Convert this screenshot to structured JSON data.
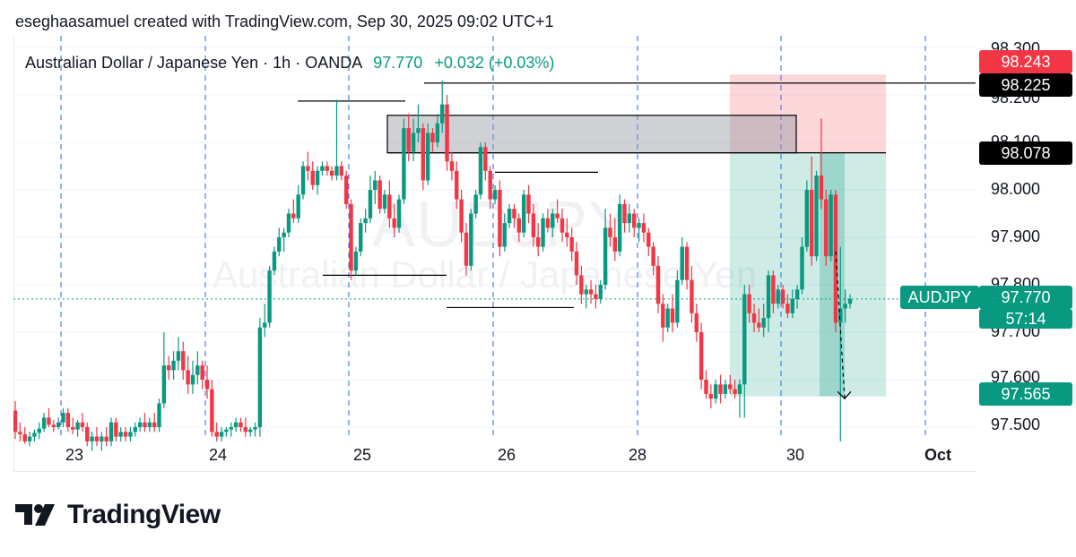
{
  "header": {
    "attribution": "eseghaasamuel created with TradingView.com, Sep 30, 2025 09:02 UTC+1"
  },
  "legend": {
    "symbol_desc": "Australian Dollar / Japanese Yen · 1h · OANDA",
    "price": "97.770",
    "change": "+0.032 (+0.03%)"
  },
  "watermark": {
    "ticker": "AUDJPY",
    "name": "Australian Dollar / Japanese Yen"
  },
  "price_axis": {
    "ticks": [
      "98.300",
      "98.200",
      "98.100",
      "98.000",
      "97.900",
      "97.800",
      "97.700",
      "97.600",
      "97.500"
    ]
  },
  "time_axis": {
    "ticks": [
      "23",
      "24",
      "25",
      "26",
      "28",
      "30",
      "Oct"
    ]
  },
  "labels": {
    "stop_loss": "98.243",
    "resistance": "98.225",
    "entry": "98.078",
    "ticker": "AUDJPY",
    "last_price": "97.770",
    "countdown": "57:14",
    "take_profit": "97.565"
  },
  "colors": {
    "up": "#089981",
    "down": "#f23645",
    "grid_marker": "#2962ff",
    "stop_zone": "#f23645",
    "target_zone": "#089981"
  },
  "brand": {
    "name": "TradingView"
  },
  "chart_data": {
    "type": "candlestick",
    "title": "Australian Dollar / Japanese Yen · 1h · OANDA",
    "ylim": [
      97.48,
      98.325
    ],
    "x_ticks": [
      "23",
      "24",
      "25",
      "26",
      "28",
      "30",
      "Oct"
    ],
    "levels": {
      "stop_loss": 98.243,
      "resistance": 98.225,
      "entry": 98.078,
      "last": 97.77,
      "take_profit": 97.565
    },
    "candles": [
      [
        97.535,
        97.555,
        97.475,
        97.49
      ],
      [
        97.49,
        97.51,
        97.47,
        97.485
      ],
      [
        97.485,
        97.5,
        97.465,
        97.47
      ],
      [
        97.47,
        97.49,
        97.46,
        97.48
      ],
      [
        97.48,
        97.495,
        97.47,
        97.488
      ],
      [
        97.488,
        97.51,
        97.475,
        97.497
      ],
      [
        97.497,
        97.53,
        97.49,
        97.52
      ],
      [
        97.52,
        97.54,
        97.5,
        97.505
      ],
      [
        97.505,
        97.515,
        97.49,
        97.5
      ],
      [
        97.5,
        97.52,
        97.495,
        97.51
      ],
      [
        97.51,
        97.54,
        97.5,
        97.53
      ],
      [
        97.53,
        97.54,
        97.49,
        97.5
      ],
      [
        97.5,
        97.52,
        97.485,
        97.495
      ],
      [
        97.495,
        97.515,
        97.48,
        97.51
      ],
      [
        97.51,
        97.53,
        97.49,
        97.5
      ],
      [
        97.5,
        97.51,
        97.46,
        97.47
      ],
      [
        97.47,
        97.49,
        97.45,
        97.48
      ],
      [
        97.48,
        97.5,
        97.46,
        97.47
      ],
      [
        97.47,
        97.49,
        97.45,
        97.48
      ],
      [
        97.48,
        97.5,
        97.46,
        97.47
      ],
      [
        97.47,
        97.52,
        97.46,
        97.51
      ],
      [
        97.51,
        97.52,
        97.47,
        97.48
      ],
      [
        97.48,
        97.5,
        97.47,
        97.49
      ],
      [
        97.49,
        97.5,
        97.47,
        97.48
      ],
      [
        97.48,
        97.5,
        97.47,
        97.49
      ],
      [
        97.49,
        97.51,
        97.48,
        97.5
      ],
      [
        97.5,
        97.52,
        97.49,
        97.51
      ],
      [
        97.51,
        97.53,
        97.49,
        97.5
      ],
      [
        97.5,
        97.52,
        97.49,
        97.51
      ],
      [
        97.51,
        97.53,
        97.49,
        97.5
      ],
      [
        97.5,
        97.56,
        97.49,
        97.55
      ],
      [
        97.55,
        97.7,
        97.54,
        97.63
      ],
      [
        97.63,
        97.65,
        97.6,
        97.62
      ],
      [
        97.62,
        97.66,
        97.6,
        97.64
      ],
      [
        97.64,
        97.69,
        97.62,
        97.66
      ],
      [
        97.66,
        97.68,
        97.6,
        97.62
      ],
      [
        97.62,
        97.65,
        97.57,
        97.59
      ],
      [
        97.59,
        97.64,
        97.57,
        97.61
      ],
      [
        97.61,
        97.66,
        97.59,
        97.63
      ],
      [
        97.63,
        97.64,
        97.58,
        97.6
      ],
      [
        97.6,
        97.63,
        97.56,
        97.58
      ],
      [
        97.58,
        97.6,
        97.48,
        97.49
      ],
      [
        97.49,
        97.51,
        97.47,
        97.48
      ],
      [
        97.48,
        97.5,
        97.47,
        97.49
      ],
      [
        97.49,
        97.5,
        97.48,
        97.495
      ],
      [
        97.495,
        97.51,
        97.48,
        97.5
      ],
      [
        97.5,
        97.52,
        97.49,
        97.51
      ],
      [
        97.51,
        97.52,
        97.49,
        97.5
      ],
      [
        97.5,
        97.52,
        97.48,
        97.49
      ],
      [
        97.49,
        97.5,
        97.48,
        97.495
      ],
      [
        97.495,
        97.51,
        97.48,
        97.5
      ],
      [
        97.5,
        97.73,
        97.48,
        97.71
      ],
      [
        97.71,
        97.76,
        97.69,
        97.72
      ],
      [
        97.72,
        97.84,
        97.71,
        97.83
      ],
      [
        97.83,
        97.88,
        97.82,
        97.87
      ],
      [
        97.87,
        97.92,
        97.86,
        97.9
      ],
      [
        97.9,
        97.92,
        97.87,
        97.91
      ],
      [
        97.91,
        97.96,
        97.9,
        97.95
      ],
      [
        97.95,
        97.98,
        97.93,
        97.94
      ],
      [
        97.94,
        98.01,
        97.93,
        97.99
      ],
      [
        97.99,
        98.06,
        97.98,
        98.05
      ],
      [
        98.05,
        98.08,
        98.02,
        98.04
      ],
      [
        98.04,
        98.06,
        98.0,
        98.01
      ],
      [
        98.01,
        98.05,
        97.99,
        98.04
      ],
      [
        98.04,
        98.06,
        98.03,
        98.05
      ],
      [
        98.05,
        98.06,
        98.03,
        98.04
      ],
      [
        98.04,
        98.05,
        98.02,
        98.03
      ],
      [
        98.03,
        98.19,
        98.02,
        98.05
      ],
      [
        98.05,
        98.06,
        98.02,
        98.03
      ],
      [
        98.03,
        98.04,
        97.96,
        97.97
      ],
      [
        97.97,
        97.98,
        97.81,
        97.83
      ],
      [
        97.83,
        97.88,
        97.82,
        97.87
      ],
      [
        97.87,
        97.94,
        97.86,
        97.93
      ],
      [
        97.93,
        97.96,
        97.91,
        97.94
      ],
      [
        97.94,
        98.03,
        97.93,
        98.0
      ],
      [
        98.0,
        98.04,
        97.97,
        98.02
      ],
      [
        98.02,
        98.03,
        97.95,
        97.96
      ],
      [
        97.96,
        98.0,
        97.95,
        97.99
      ],
      [
        97.99,
        98.02,
        97.92,
        97.94
      ],
      [
        97.94,
        97.97,
        97.9,
        97.92
      ],
      [
        97.92,
        97.99,
        97.91,
        97.98
      ],
      [
        97.98,
        98.15,
        97.97,
        98.13
      ],
      [
        98.13,
        98.16,
        98.06,
        98.08
      ],
      [
        98.08,
        98.15,
        98.06,
        98.12
      ],
      [
        98.12,
        98.18,
        98.1,
        98.13
      ],
      [
        98.13,
        98.14,
        98.0,
        98.02
      ],
      [
        98.02,
        98.14,
        98.01,
        98.12
      ],
      [
        98.12,
        98.13,
        98.08,
        98.1
      ],
      [
        98.1,
        98.16,
        98.09,
        98.14
      ],
      [
        98.14,
        98.23,
        98.12,
        98.18
      ],
      [
        98.18,
        98.2,
        98.04,
        98.06
      ],
      [
        98.06,
        98.08,
        98.02,
        98.04
      ],
      [
        98.04,
        98.06,
        97.96,
        97.98
      ],
      [
        97.98,
        98.0,
        97.89,
        97.91
      ],
      [
        97.91,
        97.93,
        97.82,
        97.84
      ],
      [
        97.84,
        97.96,
        97.83,
        97.95
      ],
      [
        97.95,
        98.0,
        97.94,
        97.99
      ],
      [
        97.99,
        98.1,
        97.98,
        98.09
      ],
      [
        98.09,
        98.1,
        98.02,
        98.04
      ],
      [
        98.04,
        98.05,
        97.96,
        97.98
      ],
      [
        97.98,
        98.01,
        97.97,
        98.0
      ],
      [
        98.0,
        98.02,
        97.86,
        97.88
      ],
      [
        97.88,
        97.95,
        97.87,
        97.93
      ],
      [
        97.93,
        97.97,
        97.92,
        97.96
      ],
      [
        97.96,
        97.97,
        97.92,
        97.94
      ],
      [
        97.94,
        97.95,
        97.89,
        97.91
      ],
      [
        97.91,
        98.0,
        97.9,
        97.99
      ],
      [
        97.99,
        98.01,
        97.93,
        97.95
      ],
      [
        97.95,
        97.97,
        97.88,
        97.9
      ],
      [
        97.9,
        97.93,
        97.86,
        97.88
      ],
      [
        97.88,
        97.95,
        97.87,
        97.94
      ],
      [
        97.94,
        97.96,
        97.91,
        97.92
      ],
      [
        97.92,
        97.96,
        97.9,
        97.95
      ],
      [
        97.95,
        97.98,
        97.93,
        97.94
      ],
      [
        97.94,
        97.96,
        97.89,
        97.91
      ],
      [
        97.91,
        97.94,
        97.88,
        97.9
      ],
      [
        97.9,
        97.92,
        97.85,
        97.87
      ],
      [
        97.87,
        97.89,
        97.8,
        97.82
      ],
      [
        97.82,
        97.84,
        97.76,
        97.78
      ],
      [
        97.78,
        97.8,
        97.75,
        97.79
      ],
      [
        97.79,
        97.81,
        97.76,
        97.78
      ],
      [
        97.78,
        97.8,
        97.75,
        97.77
      ],
      [
        97.77,
        97.81,
        97.76,
        97.8
      ],
      [
        97.8,
        97.96,
        97.79,
        97.92
      ],
      [
        97.92,
        97.95,
        97.88,
        97.9
      ],
      [
        97.9,
        97.94,
        97.85,
        97.87
      ],
      [
        97.87,
        97.99,
        97.86,
        97.97
      ],
      [
        97.97,
        97.98,
        97.91,
        97.93
      ],
      [
        97.93,
        97.97,
        97.91,
        97.95
      ],
      [
        97.95,
        97.96,
        97.9,
        97.92
      ],
      [
        97.92,
        97.94,
        97.89,
        97.93
      ],
      [
        97.93,
        97.95,
        97.89,
        97.91
      ],
      [
        97.91,
        97.92,
        97.86,
        97.88
      ],
      [
        97.88,
        97.89,
        97.82,
        97.84
      ],
      [
        97.84,
        97.86,
        97.74,
        97.76
      ],
      [
        97.76,
        97.78,
        97.68,
        97.71
      ],
      [
        97.71,
        97.76,
        97.7,
        97.75
      ],
      [
        97.75,
        97.78,
        97.7,
        97.72
      ],
      [
        97.72,
        97.83,
        97.71,
        97.81
      ],
      [
        97.81,
        97.9,
        97.8,
        97.88
      ],
      [
        97.88,
        97.89,
        97.79,
        97.81
      ],
      [
        97.81,
        97.84,
        97.72,
        97.74
      ],
      [
        97.74,
        97.76,
        97.68,
        97.7
      ],
      [
        97.7,
        97.72,
        97.58,
        97.6
      ],
      [
        97.6,
        97.62,
        97.56,
        97.57
      ],
      [
        97.57,
        97.59,
        97.54,
        97.56
      ],
      [
        97.56,
        97.6,
        97.55,
        97.59
      ],
      [
        97.59,
        97.61,
        97.55,
        97.57
      ],
      [
        97.57,
        97.6,
        97.56,
        97.59
      ],
      [
        97.59,
        97.61,
        97.57,
        97.58
      ],
      [
        97.58,
        97.6,
        97.56,
        97.57
      ],
      [
        97.57,
        97.6,
        97.52,
        97.59
      ],
      [
        97.59,
        97.8,
        97.52,
        97.78
      ],
      [
        97.78,
        97.8,
        97.72,
        97.74
      ],
      [
        97.74,
        97.76,
        97.7,
        97.72
      ],
      [
        97.72,
        97.75,
        97.7,
        97.71
      ],
      [
        97.71,
        97.76,
        97.69,
        97.73
      ],
      [
        97.73,
        97.83,
        97.7,
        97.82
      ],
      [
        97.82,
        97.83,
        97.74,
        97.76
      ],
      [
        97.76,
        97.8,
        97.75,
        97.79
      ],
      [
        97.79,
        97.8,
        97.75,
        97.76
      ],
      [
        97.76,
        97.78,
        97.73,
        97.74
      ],
      [
        97.74,
        97.79,
        97.73,
        97.77
      ],
      [
        97.77,
        97.8,
        97.75,
        97.79
      ],
      [
        97.79,
        97.9,
        97.78,
        97.88
      ],
      [
        97.88,
        98.02,
        97.87,
        98.0
      ],
      [
        98.0,
        98.07,
        97.84,
        97.86
      ],
      [
        97.86,
        98.04,
        97.85,
        98.03
      ],
      [
        98.03,
        98.15,
        97.96,
        97.98
      ],
      [
        97.98,
        98.0,
        97.84,
        97.86
      ],
      [
        97.86,
        98.0,
        97.85,
        97.99
      ],
      [
        97.99,
        98.0,
        97.7,
        97.72
      ],
      [
        97.72,
        97.88,
        97.47,
        97.75
      ],
      [
        97.75,
        97.79,
        97.72,
        97.76
      ],
      [
        97.76,
        97.78,
        97.75,
        97.77
      ]
    ]
  }
}
